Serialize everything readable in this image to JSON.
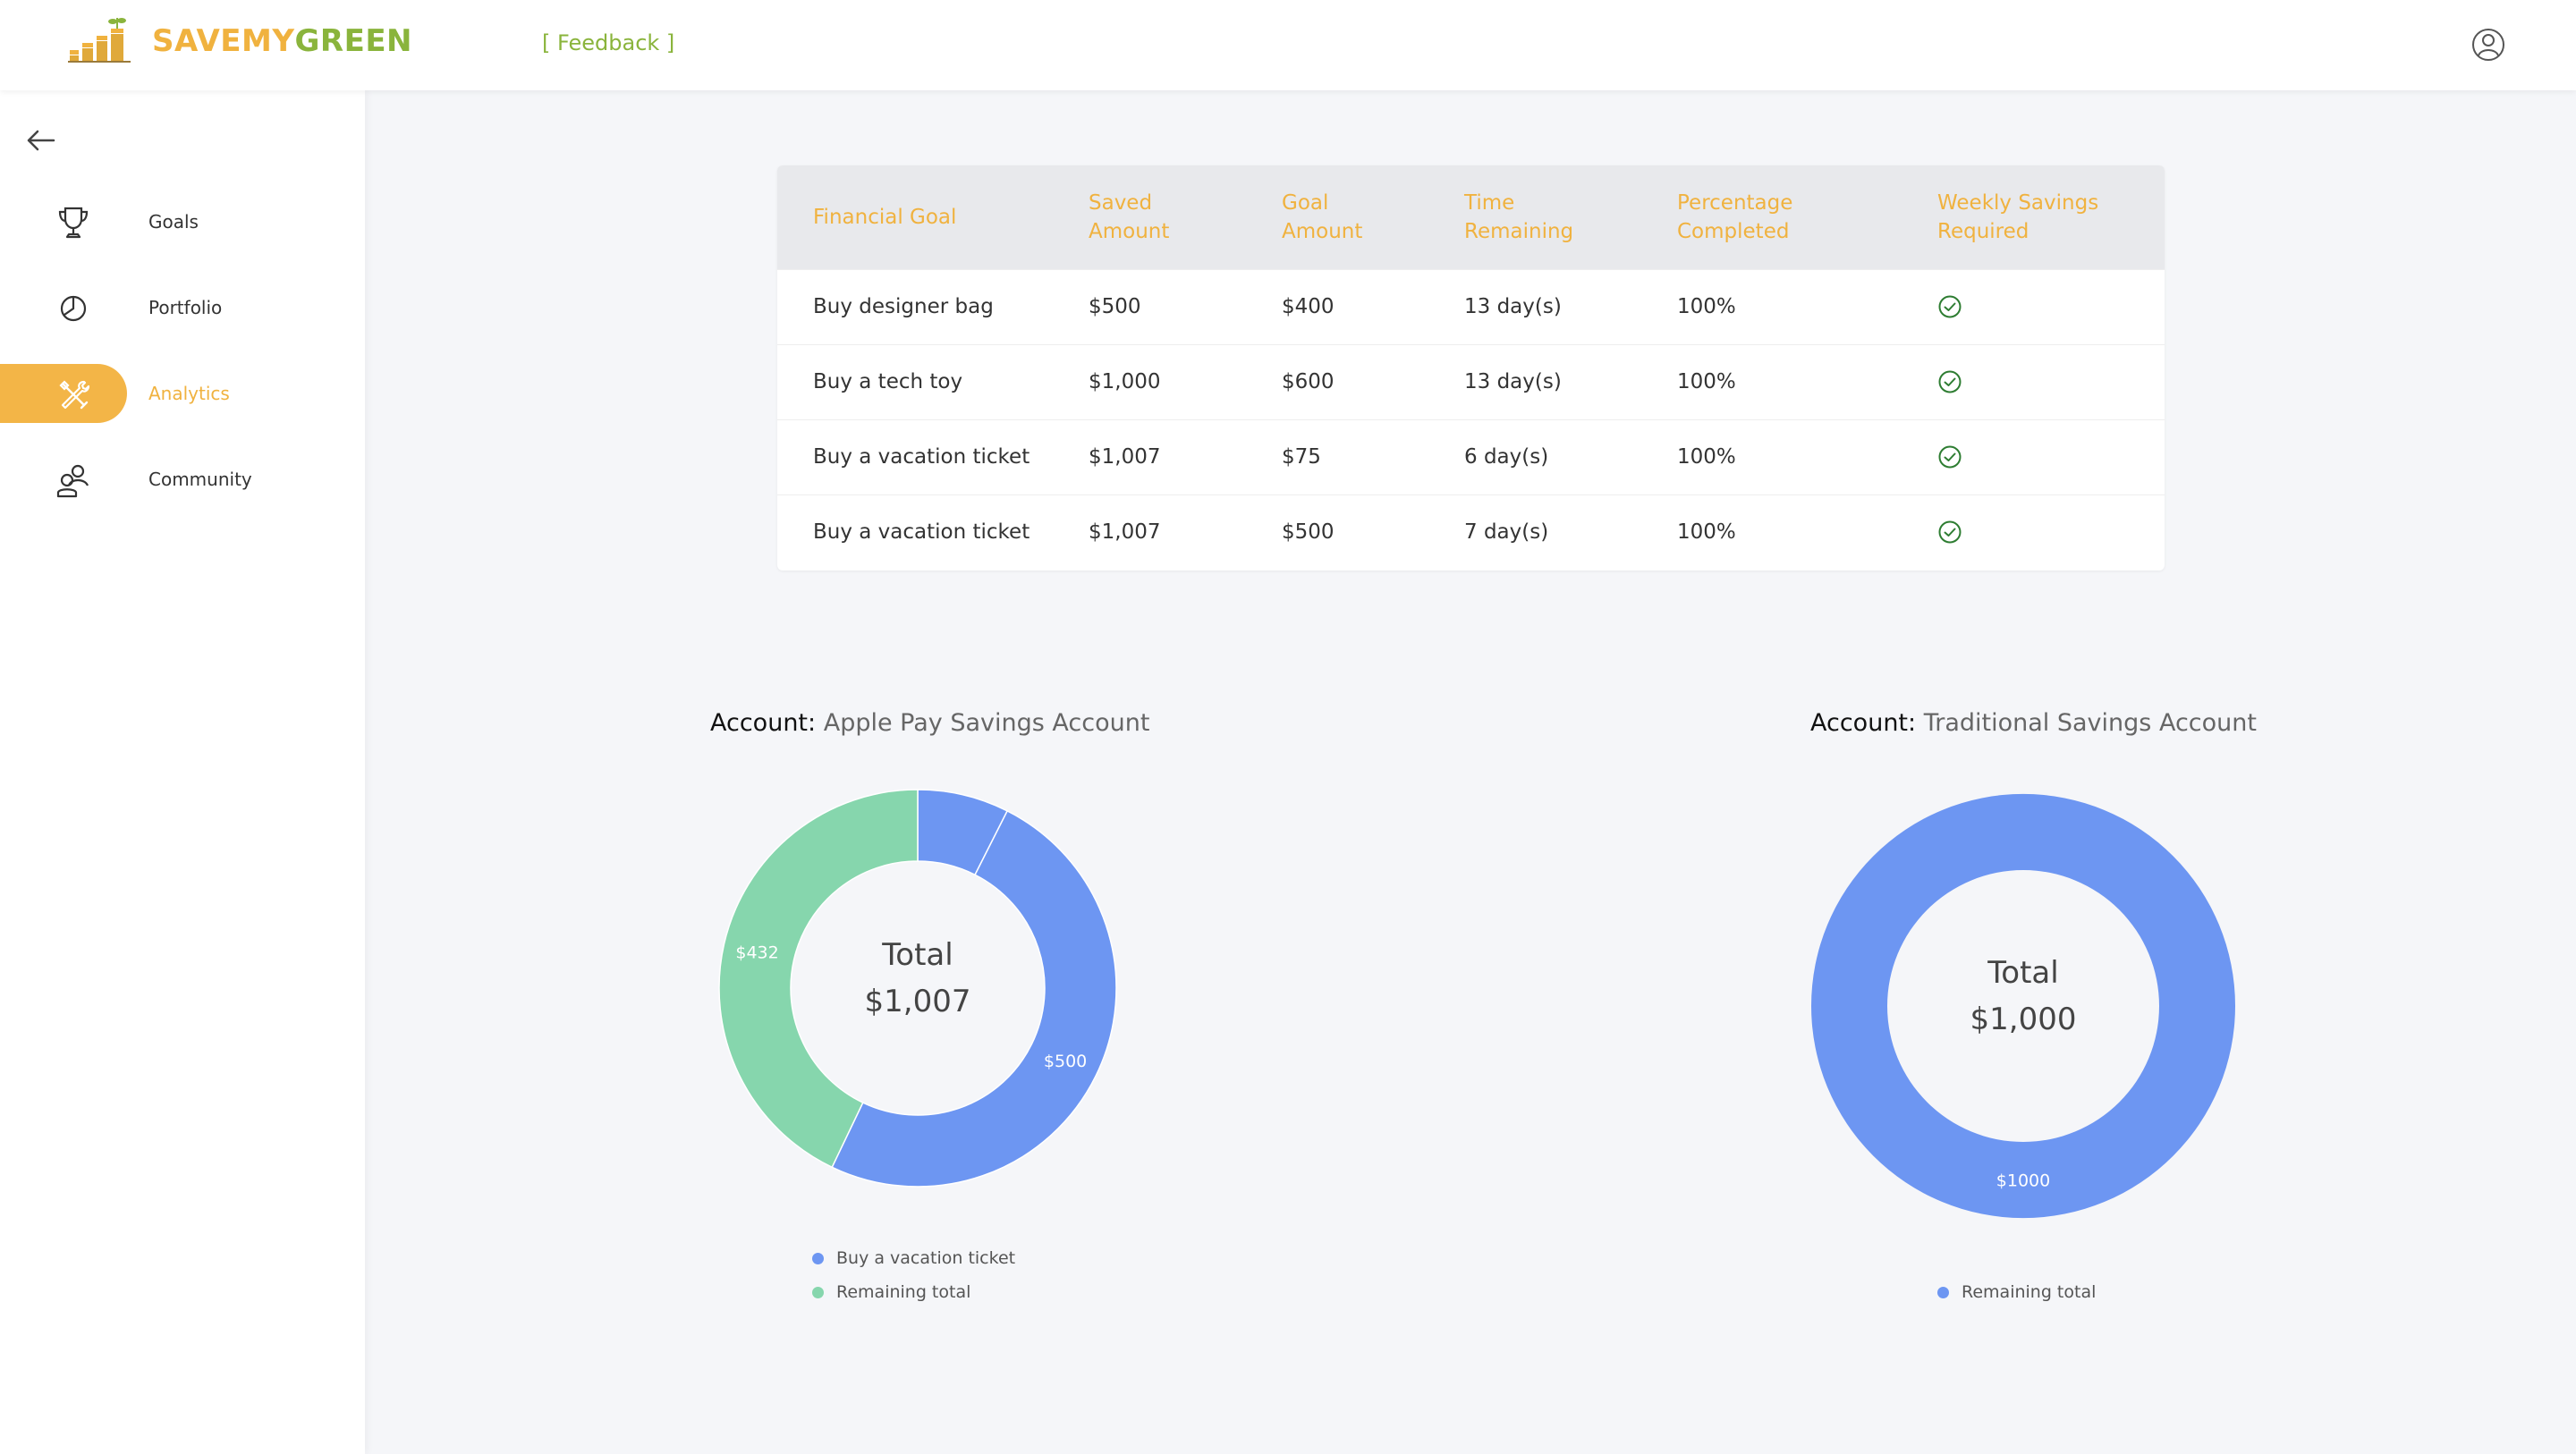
{
  "app": {
    "logo_part1": "SAVEMY",
    "logo_part2": "GREEN",
    "feedback_label": "[ Feedback ]"
  },
  "sidebar": {
    "items": [
      {
        "label": "Goals",
        "icon": "trophy-icon",
        "active": false
      },
      {
        "label": "Portfolio",
        "icon": "pie-chart-icon",
        "active": false
      },
      {
        "label": "Analytics",
        "icon": "tools-icon",
        "active": true
      },
      {
        "label": "Community",
        "icon": "users-icon",
        "active": false
      }
    ]
  },
  "goals_table": {
    "headers": [
      "Financial Goal",
      "Saved\nAmount",
      "Goal\nAmount",
      "Time\nRemaining",
      "Percentage\nCompleted",
      "Weekly Savings\nRequired"
    ],
    "rows": [
      {
        "goal": "Buy designer bag",
        "saved": "$500",
        "target": "$400",
        "time": "13 day(s)",
        "percent": "100%",
        "weekly": "check-circle-icon"
      },
      {
        "goal": "Buy a tech toy",
        "saved": "$1,000",
        "target": "$600",
        "time": "13 day(s)",
        "percent": "100%",
        "weekly": "check-circle-icon"
      },
      {
        "goal": "Buy a vacation ticket",
        "saved": "$1,007",
        "target": "$75",
        "time": "6 day(s)",
        "percent": "100%",
        "weekly": "check-circle-icon"
      },
      {
        "goal": "Buy a vacation ticket",
        "saved": "$1,007",
        "target": "$500",
        "time": "7 day(s)",
        "percent": "100%",
        "weekly": "check-circle-icon"
      }
    ]
  },
  "colors": {
    "accent_orange": "#f0b23f",
    "accent_green": "#8ab43c",
    "check_green": "#2e7d32",
    "series_blue": "#6d96f2",
    "series_green": "#86d6ad"
  },
  "chart_data": [
    {
      "type": "pie",
      "account_label": "Account:",
      "account_name": "Apple Pay Savings Account",
      "center_label": "Total",
      "center_value": "$1,007",
      "slices": [
        {
          "name": "Buy a vacation ticket",
          "value": 75,
          "label": "",
          "color": "#6d96f2"
        },
        {
          "name": "Buy a vacation ticket",
          "value": 500,
          "label": "$500",
          "color": "#6d96f2"
        },
        {
          "name": "Remaining total",
          "value": 432,
          "label": "$432",
          "color": "#86d6ad"
        }
      ],
      "legend": [
        {
          "name": "Buy a vacation ticket",
          "color": "#6d96f2"
        },
        {
          "name": "Remaining total",
          "color": "#86d6ad"
        }
      ]
    },
    {
      "type": "pie",
      "account_label": "Account:",
      "account_name": "Traditional Savings Account",
      "center_label": "Total",
      "center_value": "$1,000",
      "slices": [
        {
          "name": "Remaining total",
          "value": 1000,
          "label": "$1000",
          "color": "#6d96f2"
        }
      ],
      "legend": [
        {
          "name": "Remaining total",
          "color": "#6d96f2"
        }
      ]
    }
  ]
}
